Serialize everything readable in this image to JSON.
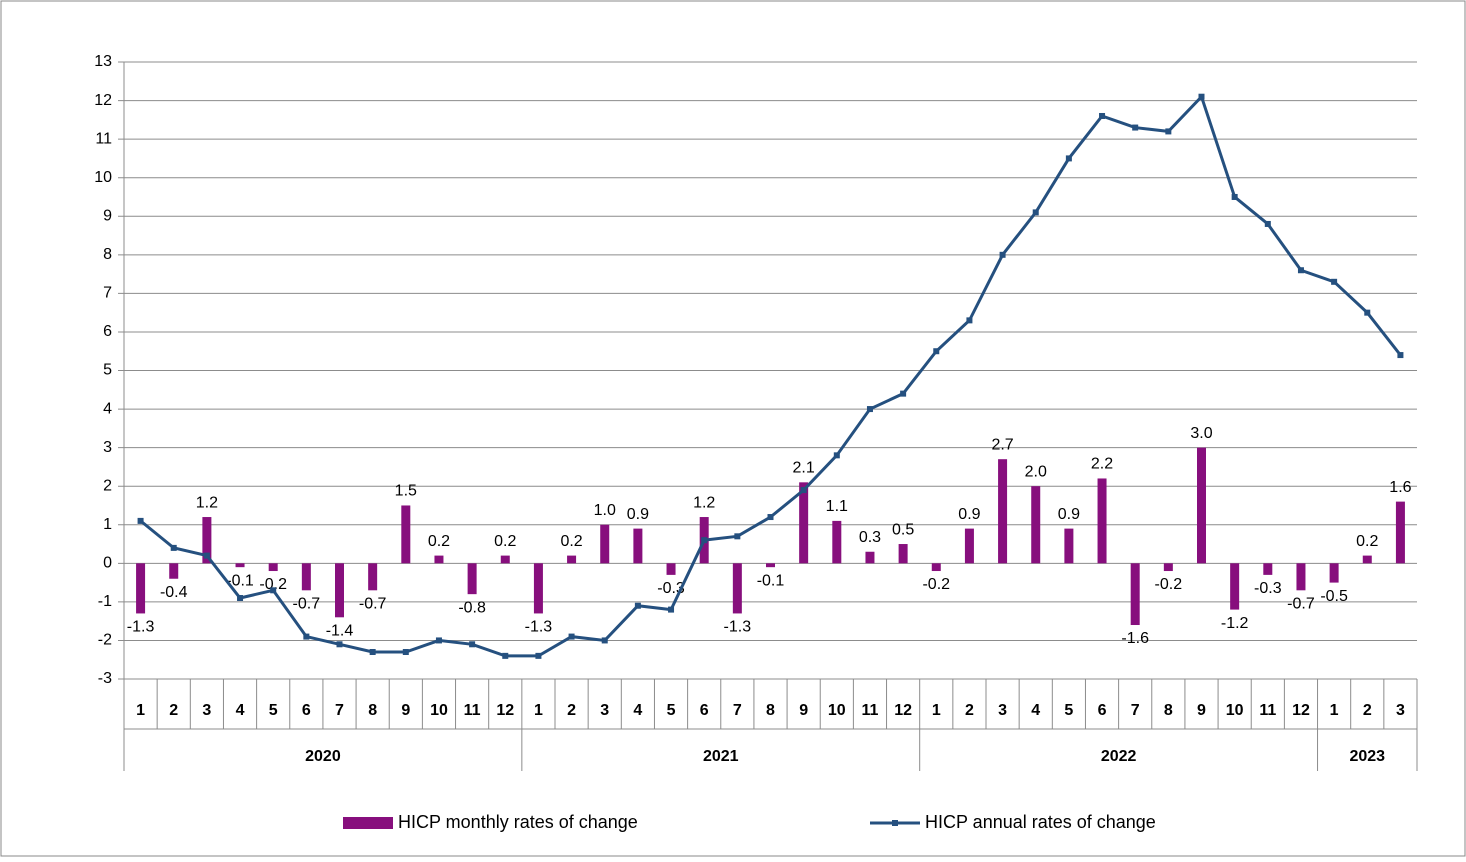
{
  "chart_data": {
    "type": "bar-line",
    "category_groups": [
      {
        "label": "2020",
        "categories": [
          "1",
          "2",
          "3",
          "4",
          "5",
          "6",
          "7",
          "8",
          "9",
          "10",
          "11",
          "12"
        ]
      },
      {
        "label": "2021",
        "categories": [
          "1",
          "2",
          "3",
          "4",
          "5",
          "6",
          "7",
          "8",
          "9",
          "10",
          "11",
          "12"
        ]
      },
      {
        "label": "2022",
        "categories": [
          "1",
          "2",
          "3",
          "4",
          "5",
          "6",
          "7",
          "8",
          "9",
          "10",
          "11",
          "12"
        ]
      },
      {
        "label": "2023",
        "categories": [
          "1",
          "2",
          "3"
        ]
      }
    ],
    "series": [
      {
        "name": "HICP monthly rates of change",
        "type": "bar",
        "color": "#870f7d",
        "values": [
          -1.3,
          -0.4,
          1.2,
          -0.1,
          -0.2,
          -0.7,
          -1.4,
          -0.7,
          1.5,
          0.2,
          -0.8,
          0.2,
          -1.3,
          0.2,
          1.0,
          0.9,
          -0.3,
          1.2,
          -1.3,
          -0.1,
          2.1,
          1.1,
          0.3,
          0.5,
          -0.2,
          0.9,
          2.7,
          2.0,
          0.9,
          2.2,
          -1.6,
          -0.2,
          3.0,
          -1.2,
          -0.3,
          -0.7,
          -0.5,
          0.2,
          1.6
        ],
        "value_labels": [
          "-1.3",
          "-0.4",
          "1.2",
          "-0.1",
          "-0.2",
          "-0.7",
          "-1.4",
          "-0.7",
          "1.5",
          "0.2",
          "-0.8",
          "0.2",
          "-1.3",
          "0.2",
          "1.0",
          "0.9",
          "-0.3",
          "1.2",
          "-1.3",
          "-0.1",
          "2.1",
          "1.1",
          "0.3",
          "0.5",
          "-0.2",
          "0.9",
          "2.7",
          "2.0",
          "0.9",
          "2.2",
          "-1.6",
          "-0.2",
          "3.0",
          "-1.2",
          "-0.3",
          "-0.7",
          "-0.5",
          "0.2",
          "1.6"
        ]
      },
      {
        "name": "HICP annual rates of change",
        "type": "line",
        "color": "#25507f",
        "values": [
          1.1,
          0.4,
          0.2,
          -0.9,
          -0.7,
          -1.9,
          -2.1,
          -2.3,
          -2.3,
          -2.0,
          -2.1,
          -2.4,
          -2.4,
          -1.9,
          -2.0,
          -1.1,
          -1.2,
          0.6,
          0.7,
          1.2,
          1.9,
          2.8,
          4.0,
          4.4,
          5.5,
          6.3,
          8.0,
          9.1,
          10.5,
          11.6,
          11.3,
          11.2,
          12.1,
          9.5,
          8.8,
          7.6,
          7.3,
          6.5,
          5.4
        ]
      }
    ],
    "ylim": [
      -3,
      13
    ],
    "yticks": [
      -3,
      -2,
      -1,
      0,
      1,
      2,
      3,
      4,
      5,
      6,
      7,
      8,
      9,
      10,
      11,
      12,
      13
    ],
    "grid": true
  }
}
